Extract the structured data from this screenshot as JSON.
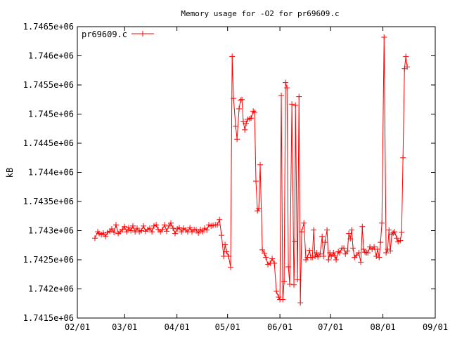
{
  "chart_data": {
    "type": "line",
    "title": "Memory usage for -O2 for pr69609.c",
    "xlabel": "",
    "ylabel": "kB",
    "x_unit": "days since 02/01",
    "xlim": [
      0,
      212
    ],
    "ylim": [
      1741500,
      1746500
    ],
    "x_ticks": [
      {
        "value": 0,
        "label": "02/01"
      },
      {
        "value": 28,
        "label": "03/01"
      },
      {
        "value": 59,
        "label": "04/01"
      },
      {
        "value": 89,
        "label": "05/01"
      },
      {
        "value": 120,
        "label": "06/01"
      },
      {
        "value": 150,
        "label": "07/01"
      },
      {
        "value": 181,
        "label": "08/01"
      },
      {
        "value": 212,
        "label": "09/01"
      }
    ],
    "y_ticks": [
      {
        "value": 1741500,
        "label": "1.7415e+06"
      },
      {
        "value": 1742000,
        "label": "1.742e+06"
      },
      {
        "value": 1742500,
        "label": "1.7425e+06"
      },
      {
        "value": 1743000,
        "label": "1.743e+06"
      },
      {
        "value": 1743500,
        "label": "1.7435e+06"
      },
      {
        "value": 1744000,
        "label": "1.744e+06"
      },
      {
        "value": 1744500,
        "label": "1.7445e+06"
      },
      {
        "value": 1745000,
        "label": "1.745e+06"
      },
      {
        "value": 1745500,
        "label": "1.7455e+06"
      },
      {
        "value": 1746000,
        "label": "1.746e+06"
      },
      {
        "value": 1746500,
        "label": "1.7465e+06"
      }
    ],
    "legend": {
      "position": "top-left",
      "label": "pr69609.c"
    },
    "series": [
      {
        "name": "pr69609.c",
        "color": "#ff0000",
        "x": [
          10.4,
          12.1,
          12.9,
          14.2,
          15.4,
          16.7,
          17.9,
          19.2,
          20.4,
          21.7,
          22.9,
          24.2,
          25.4,
          26.7,
          27.9,
          29.2,
          30.4,
          31.7,
          32.9,
          34.2,
          35.4,
          36.7,
          37.9,
          39.2,
          40.4,
          41.7,
          42.9,
          44.2,
          45.4,
          46.7,
          47.9,
          49.2,
          50.4,
          51.7,
          52.9,
          54.2,
          55.4,
          56.7,
          57.9,
          59.2,
          60.4,
          61.7,
          62.9,
          64.2,
          65.4,
          66.7,
          67.9,
          69.2,
          70.4,
          71.7,
          72.9,
          74.2,
          75.4,
          76.7,
          77.9,
          79.2,
          80.4,
          81.7,
          82.9,
          84.2,
          85.4,
          86.7,
          87.5,
          88.3,
          89.6,
          90.8,
          91.7,
          92.5,
          93.8,
          94.6,
          95.8,
          96.7,
          97.5,
          98.3,
          99.2,
          100,
          100.8,
          102.1,
          102.9,
          104.2,
          105,
          105.8,
          106.7,
          107.5,
          108.3,
          109.6,
          110.8,
          111.7,
          112.9,
          114.2,
          115.4,
          116.7,
          117.9,
          119.2,
          120,
          120.8,
          121.7,
          122.5,
          123.3,
          124.2,
          125,
          125.8,
          127.1,
          128.3,
          128.8,
          129.2,
          130.4,
          131.3,
          132.1,
          132.9,
          134.2,
          135.4,
          136.3,
          137.5,
          138.3,
          139.2,
          140,
          140.8,
          141.7,
          142.5,
          143.8,
          145,
          145.8,
          146.7,
          147.9,
          148.8,
          149.6,
          150.4,
          151.7,
          152.5,
          153.3,
          154.6,
          155.4,
          156.7,
          157.9,
          158.8,
          160,
          160.8,
          161.7,
          162.5,
          163.3,
          164.2,
          165.4,
          166.7,
          167.9,
          168.8,
          169.6,
          170.4,
          171.3,
          172.1,
          173.3,
          174.6,
          175.8,
          177.1,
          177.9,
          178.8,
          179.6,
          180.4,
          181.7,
          182.9,
          183.8,
          184.6,
          185.4,
          186.3,
          187.1,
          187.9,
          189.2,
          190,
          191.3,
          192.1,
          192.9,
          193.8,
          194.6,
          195.4
        ],
        "y": [
          1742870,
          1742980,
          1742950,
          1742930,
          1742960,
          1742900,
          1742970,
          1742990,
          1743030,
          1742970,
          1743100,
          1742950,
          1742980,
          1743020,
          1743070,
          1742980,
          1743050,
          1743000,
          1743080,
          1742980,
          1743040,
          1742980,
          1743000,
          1743080,
          1742990,
          1743020,
          1743040,
          1742980,
          1743080,
          1743100,
          1743020,
          1742980,
          1743020,
          1743100,
          1742990,
          1743080,
          1743130,
          1743040,
          1742950,
          1743030,
          1743050,
          1742980,
          1743040,
          1743010,
          1742980,
          1743050,
          1742980,
          1743020,
          1743010,
          1742960,
          1743020,
          1742980,
          1743040,
          1743010,
          1743100,
          1743080,
          1743090,
          1743100,
          1743100,
          1743190,
          1742920,
          1742560,
          1742760,
          1742640,
          1742560,
          1742370,
          1745990,
          1745270,
          1744790,
          1744570,
          1745090,
          1745240,
          1745250,
          1744870,
          1744730,
          1744840,
          1744910,
          1744920,
          1744930,
          1745050,
          1745030,
          1743850,
          1743340,
          1743380,
          1744130,
          1742670,
          1742610,
          1742540,
          1742420,
          1742440,
          1742520,
          1742440,
          1741960,
          1741860,
          1741820,
          1745320,
          1741820,
          1742130,
          1745540,
          1745450,
          1742380,
          1742080,
          1745170,
          1742070,
          1742820,
          1745150,
          1742160,
          1745300,
          1741760,
          1742980,
          1743130,
          1742500,
          1742540,
          1742660,
          1742540,
          1742540,
          1743010,
          1742560,
          1742620,
          1742550,
          1742600,
          1742900,
          1742560,
          1742800,
          1743010,
          1742500,
          1742620,
          1742560,
          1742620,
          1742570,
          1742500,
          1742640,
          1742620,
          1742700,
          1742700,
          1742600,
          1742650,
          1742950,
          1742860,
          1743010,
          1742700,
          1742540,
          1742580,
          1742620,
          1742460,
          1743070,
          1742680,
          1742630,
          1742620,
          1742620,
          1742720,
          1742680,
          1742720,
          1742560,
          1742680,
          1742540,
          1742800,
          1743130,
          1746320,
          1742620,
          1742680,
          1743010,
          1742650,
          1742940,
          1742960,
          1742980,
          1742870,
          1742810,
          1742830,
          1742970,
          1744250,
          1745780,
          1745990,
          1745810
        ]
      }
    ]
  }
}
